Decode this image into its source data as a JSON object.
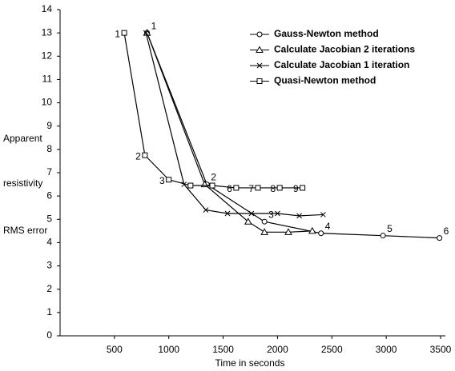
{
  "chart_data": {
    "type": "line",
    "xlabel": "Time in seconds",
    "ylabel": [
      "Apparent",
      "resistivity",
      "RMS error"
    ],
    "xlim": [
      0,
      3500
    ],
    "xticks": [
      500,
      1000,
      1500,
      2000,
      2500,
      3000,
      3500
    ],
    "ylim": [
      0,
      14
    ],
    "yticks": [
      0,
      1,
      2,
      3,
      4,
      5,
      6,
      7,
      8,
      9,
      10,
      11,
      12,
      13,
      14
    ],
    "series": [
      {
        "name": "Gauss-Newton method",
        "color": "#000000",
        "marker": "circle",
        "x": [
          800,
          1350,
          1880,
          2400,
          2970,
          3490
        ],
        "values": [
          13,
          6.5,
          4.9,
          4.4,
          4.3,
          4.2
        ],
        "point_labels": [
          "1",
          "2",
          "3",
          "4",
          "5",
          "6"
        ]
      },
      {
        "name": "Calculate Jacobian 2 iterations",
        "color": "#000000",
        "marker": "triangle",
        "x": [
          800,
          1330,
          1730,
          1880,
          2100,
          2320
        ],
        "values": [
          13,
          6.5,
          4.9,
          4.45,
          4.45,
          4.5
        ]
      },
      {
        "name": "Calculate Jacobian 1 iteration",
        "color": "#000000",
        "marker": "x",
        "x": [
          790,
          1140,
          1340,
          1540,
          1760,
          2000,
          2200,
          2420
        ],
        "values": [
          13,
          6.5,
          5.4,
          5.25,
          5.25,
          5.25,
          5.15,
          5.2
        ]
      },
      {
        "name": "Quasi-Newton method",
        "color": "#000000",
        "marker": "square",
        "x": [
          590,
          780,
          1000,
          1200,
          1400,
          1620,
          1820,
          2020,
          2230
        ],
        "values": [
          13,
          7.75,
          6.7,
          6.45,
          6.45,
          6.35,
          6.35,
          6.35,
          6.35
        ],
        "point_labels": [
          "1",
          "2",
          "3",
          null,
          null,
          "6",
          "7",
          "8",
          "9"
        ]
      }
    ]
  }
}
